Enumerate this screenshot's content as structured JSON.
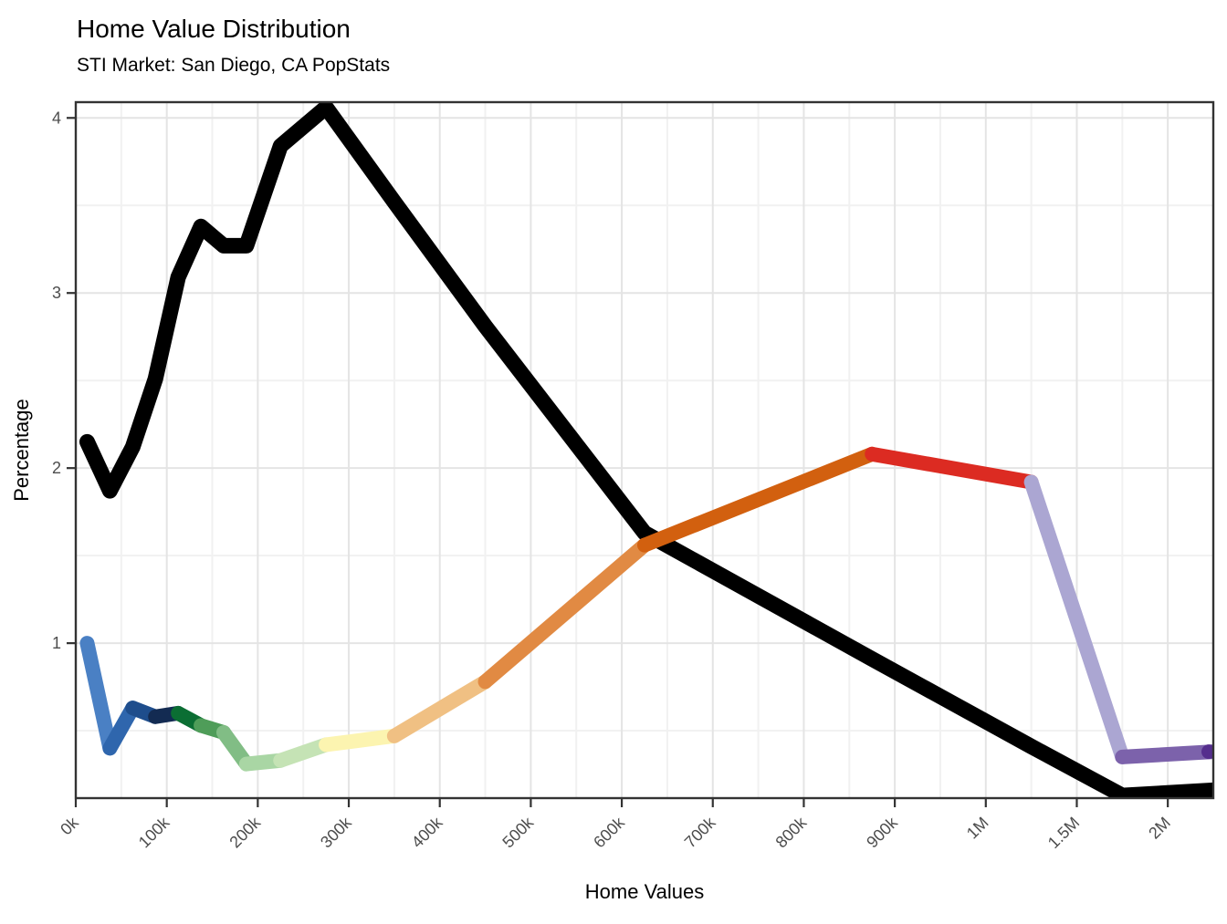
{
  "chart": {
    "title": "Home Value Distribution",
    "subtitle": "STI Market: San Diego, CA PopStats",
    "xlabel": "Home Values",
    "ylabel": "Percentage"
  },
  "chart_data": {
    "type": "line",
    "title": "Home Value Distribution",
    "subtitle": "STI Market: San Diego, CA PopStats",
    "xlabel": "Home Values",
    "ylabel": "Percentage",
    "x_axis": {
      "tick_labels": [
        "0k",
        "100k",
        "200k",
        "300k",
        "400k",
        "500k",
        "600k",
        "700k",
        "800k",
        "900k",
        "1M",
        "1.5M",
        "2M"
      ],
      "tick_units": [
        0,
        1,
        2,
        3,
        4,
        5,
        6,
        7,
        8,
        9,
        10,
        11,
        12
      ],
      "minor_units": [
        0.5,
        1.5,
        2.5,
        3.5,
        4.5,
        5.5,
        6.5,
        7.5,
        8.5,
        9.5,
        10.5,
        11.5
      ],
      "range_units": [
        0,
        12.5
      ],
      "label_angle_deg": 45
    },
    "y_axis": {
      "tick_labels": [
        "1",
        "2",
        "3",
        "4"
      ],
      "tick_values": [
        1,
        2,
        3,
        4
      ],
      "minor_values": [
        0.5,
        1.5,
        2.5,
        3.5
      ],
      "range": [
        0.115,
        4.09
      ]
    },
    "grid": "on",
    "legend": "none",
    "x_unit_positions": [
      0.125,
      0.375,
      0.625,
      0.875,
      1.125,
      1.375,
      1.625,
      1.875,
      2.25,
      2.75,
      3.5,
      4.5,
      6.25,
      8.75,
      10.5,
      11.5,
      12.5
    ],
    "series": [
      {
        "name": "series-black",
        "color": "#000000",
        "stroke_width": 17,
        "values": [
          2.15,
          1.87,
          2.12,
          2.51,
          3.09,
          3.38,
          3.27,
          3.27,
          3.84,
          4.06,
          3.52,
          2.81,
          1.63,
          0.91,
          0.41,
          0.13,
          0.16
        ]
      },
      {
        "name": "series-rainbow",
        "stroke_width": 16,
        "values": [
          1.0,
          0.4,
          0.63,
          0.58,
          0.6,
          0.53,
          0.49,
          0.31,
          0.33,
          0.42,
          0.47,
          0.78,
          1.56,
          2.08,
          1.92,
          0.35,
          0.38
        ],
        "segment_colors": [
          "#4a80c4",
          "#2f66ad",
          "#1e4d8c",
          "#132b52",
          "#0b6e33",
          "#4f9d59",
          "#81bd85",
          "#a9d6a4",
          "#c5e3b5",
          "#fcf4b0",
          "#f0c083",
          "#e18a43",
          "#d2600f",
          "#dc2b22",
          "#aba6d2",
          "#7c62ab"
        ],
        "end_dot_color": "#552e8d"
      }
    ],
    "theme": {
      "background": "#ffffff",
      "panel_background": "#ffffff",
      "grid_major_color": "#e4e4e4",
      "grid_minor_color": "#f1f1f1",
      "border_color": "#333333",
      "tick_color": "#333333",
      "tick_label_color": "#4d4d4d"
    }
  }
}
